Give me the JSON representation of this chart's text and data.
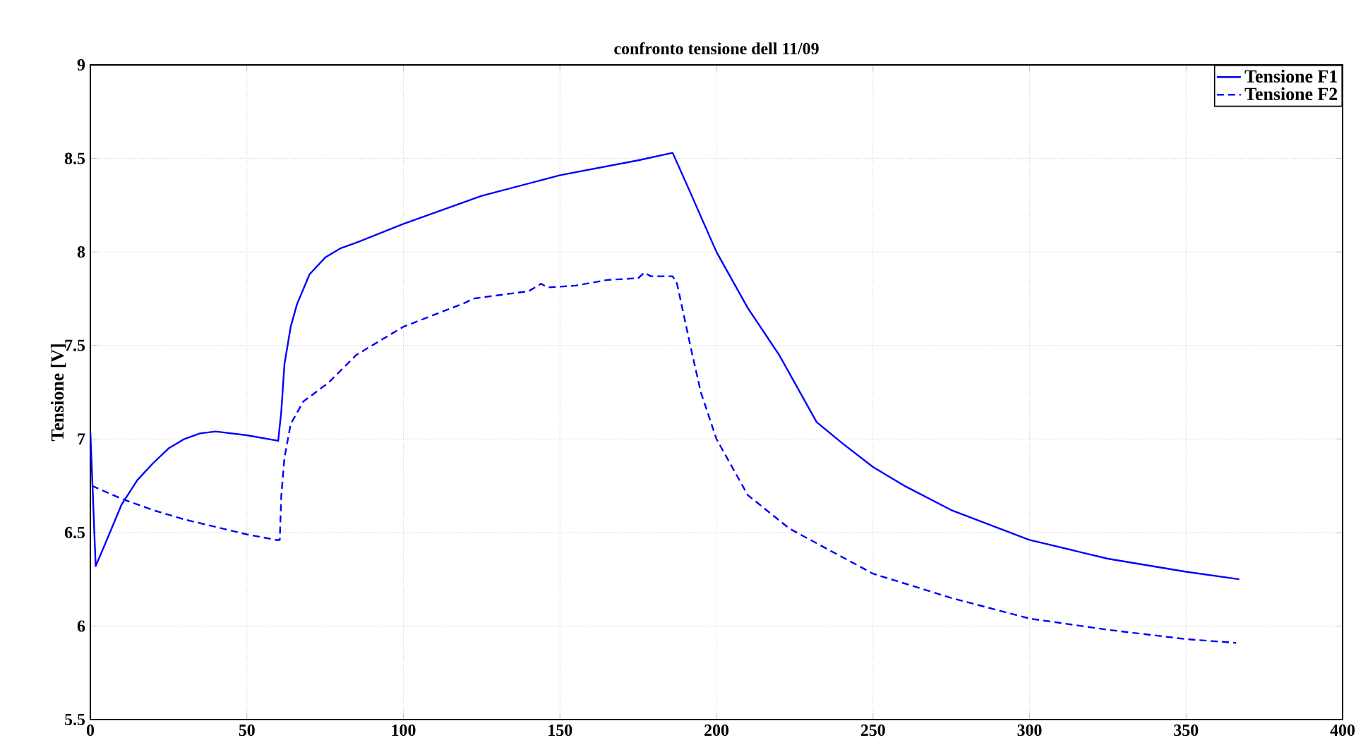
{
  "chart_data": {
    "type": "line",
    "title": "confronto tensione dell 11/09",
    "ylabel": "Tensione [V]",
    "xlim": [
      0,
      400
    ],
    "ylim": [
      5.5,
      9
    ],
    "xticks": [
      0,
      50,
      100,
      150,
      200,
      250,
      300,
      350,
      400
    ],
    "yticks": [
      5.5,
      6,
      6.5,
      7,
      7.5,
      8,
      8.5,
      9
    ],
    "grid": true,
    "legend": "top right",
    "series": [
      {
        "name": "Tensione F1",
        "color": "#0000ff",
        "line_style": "solid",
        "x": [
          0,
          1.7,
          5,
          10,
          15,
          20,
          25,
          30,
          35,
          40,
          50,
          60,
          61,
          62,
          64,
          66,
          70,
          75,
          80,
          85,
          100,
          125,
          150,
          175,
          186,
          190,
          200,
          210,
          220,
          232,
          240,
          250,
          260,
          275,
          300,
          325,
          350,
          367
        ],
        "values": [
          7.04,
          6.32,
          6.45,
          6.65,
          6.78,
          6.87,
          6.95,
          7.0,
          7.03,
          7.04,
          7.02,
          6.99,
          7.15,
          7.4,
          7.6,
          7.72,
          7.88,
          7.97,
          8.02,
          8.05,
          8.15,
          8.3,
          8.41,
          8.49,
          8.53,
          8.38,
          8.0,
          7.7,
          7.45,
          7.09,
          6.98,
          6.85,
          6.75,
          6.62,
          6.46,
          6.36,
          6.29,
          6.25
        ]
      },
      {
        "name": "Tensione F2",
        "color": "#0000ff",
        "line_style": "dashed",
        "x": [
          0.5,
          10,
          20,
          30,
          40,
          50,
          59.5,
          60.5,
          61,
          62,
          64,
          68,
          76,
          85,
          100,
          120,
          122,
          140,
          144,
          146,
          155,
          165,
          175,
          177,
          179,
          186,
          187.4,
          191.9,
          195,
          200,
          210,
          223.4,
          250,
          275,
          300,
          325,
          350,
          366
        ],
        "values": [
          6.75,
          6.68,
          6.62,
          6.57,
          6.53,
          6.49,
          6.46,
          6.46,
          6.7,
          6.9,
          7.08,
          7.2,
          7.3,
          7.45,
          7.6,
          7.73,
          7.75,
          7.79,
          7.83,
          7.81,
          7.82,
          7.85,
          7.86,
          7.89,
          7.87,
          7.87,
          7.83,
          7.48,
          7.25,
          7.0,
          6.7,
          6.52,
          6.28,
          6.15,
          6.04,
          5.98,
          5.93,
          5.91
        ]
      }
    ]
  }
}
